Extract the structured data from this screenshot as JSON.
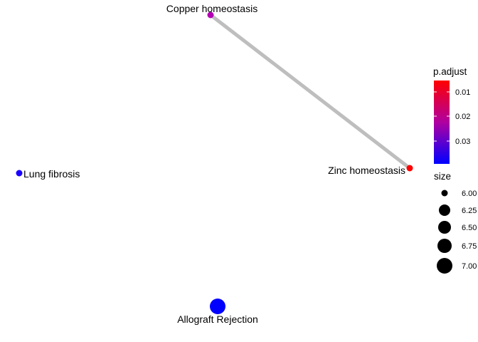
{
  "chart_data": {
    "type": "network",
    "nodes": [
      {
        "id": "copper",
        "label": "Copper homeostasis",
        "size": 6.0,
        "color": "#b300b3"
      },
      {
        "id": "zinc",
        "label": "Zinc homeostasis",
        "size": 6.0,
        "color": "#ff0000"
      },
      {
        "id": "lung",
        "label": "Lung fibrosis",
        "size": 6.0,
        "color": "#1a00ff"
      },
      {
        "id": "allograft",
        "label": "Allograft Rejection",
        "size": 7.0,
        "color": "#0000ff"
      }
    ],
    "edges": [
      {
        "source": "copper",
        "target": "zinc",
        "color": "#bebebe"
      }
    ],
    "legend": {
      "color": {
        "title": "p.adjust",
        "ticks": [
          "0.01",
          "0.02",
          "0.03"
        ],
        "gradient": [
          "#ff0000",
          "#0000ff"
        ]
      },
      "size": {
        "title": "size",
        "ticks": [
          "6.00",
          "6.25",
          "6.50",
          "6.75",
          "7.00"
        ],
        "values": [
          6.0,
          6.25,
          6.5,
          6.75,
          7.0
        ]
      }
    }
  }
}
